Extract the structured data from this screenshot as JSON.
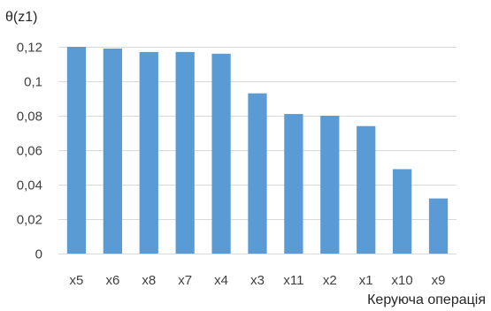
{
  "chart_data": {
    "type": "bar",
    "ylabel": "θ(z1)",
    "xlabel": "Керуюча операція",
    "categories": [
      "x5",
      "x6",
      "x8",
      "x7",
      "x4",
      "x3",
      "x11",
      "x2",
      "x1",
      "x10",
      "x9"
    ],
    "values": [
      0.12,
      0.119,
      0.117,
      0.117,
      0.116,
      0.093,
      0.081,
      0.08,
      0.074,
      0.049,
      0.032
    ],
    "ylim": [
      0,
      0.12
    ],
    "yticks": [
      0,
      0.02,
      0.04,
      0.06,
      0.08,
      0.1,
      0.12
    ],
    "ytick_labels": [
      "0",
      "0,02",
      "0,04",
      "0,06",
      "0,08",
      "0,1",
      "0,12"
    ],
    "grid": true,
    "bar_color": "#5b9bd5"
  }
}
